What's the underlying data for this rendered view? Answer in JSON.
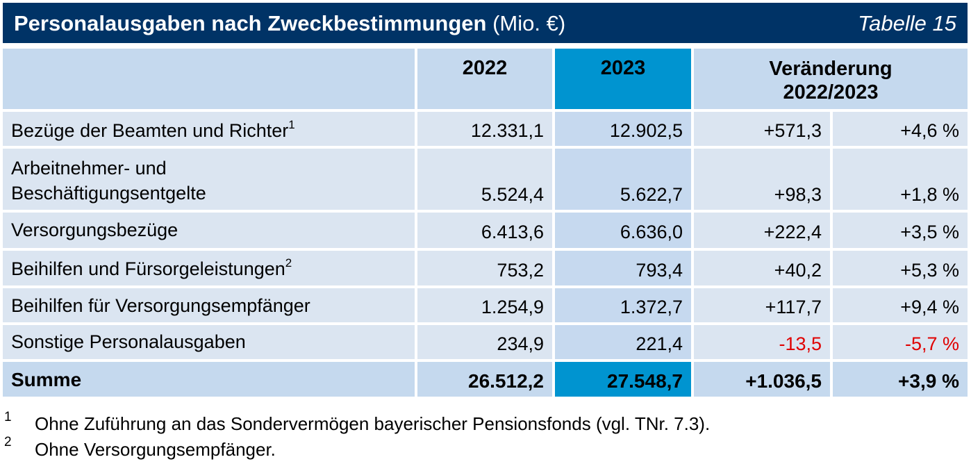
{
  "title": {
    "main": "Personalausgaben nach Zweckbestimmungen",
    "unit": "(Mio. €)",
    "table_number": "Tabelle 15"
  },
  "header": {
    "year1": "2022",
    "year2": "2023",
    "change_line1": "Veränderung",
    "change_line2": "2022/2023"
  },
  "rows": [
    {
      "label": "Bezüge der Beamten und Richter",
      "footnote": "1",
      "v2022": "12.331,1",
      "v2023": "12.902,5",
      "abs": "+571,3",
      "pct": "+4,6 %"
    },
    {
      "label_line1": "Arbeitnehmer- und",
      "label_line2": "Beschäftigungsentgelte",
      "v2022": "5.524,4",
      "v2023": "5.622,7",
      "abs": "+98,3",
      "pct": "+1,8 %"
    },
    {
      "label": "Versorgungsbezüge",
      "v2022": "6.413,6",
      "v2023": "6.636,0",
      "abs": "+222,4",
      "pct": "+3,5 %"
    },
    {
      "label": "Beihilfen und Fürsorgeleistungen",
      "footnote": "2",
      "v2022": "753,2",
      "v2023": "793,4",
      "abs": "+40,2",
      "pct": "+5,3 %"
    },
    {
      "label": "Beihilfen für Versorgungsempfänger",
      "v2022": "1.254,9",
      "v2023": "1.372,7",
      "abs": "+117,7",
      "pct": "+9,4 %"
    },
    {
      "label": "Sonstige Personalausgaben",
      "v2022": "234,9",
      "v2023": "221,4",
      "abs": "-13,5",
      "pct": "-5,7 %"
    }
  ],
  "sum": {
    "label": "Summe",
    "v2022": "26.512,2",
    "v2023": "27.548,7",
    "abs": "+1.036,5",
    "pct": "+3,9 %"
  },
  "footnotes": [
    {
      "num": "1",
      "text": "Ohne Zuführung an das Sondervermögen bayerischer Pensionsfonds (vgl. TNr. 7.3)."
    },
    {
      "num": "2",
      "text": "Ohne Versorgungsempfänger."
    }
  ],
  "colors": {
    "title_bg": "#003366",
    "header_bg": "#c5d9ee",
    "highlight_2023": "#0094d0",
    "row_bg": "#dbe5f1",
    "negative": "#e00000"
  }
}
